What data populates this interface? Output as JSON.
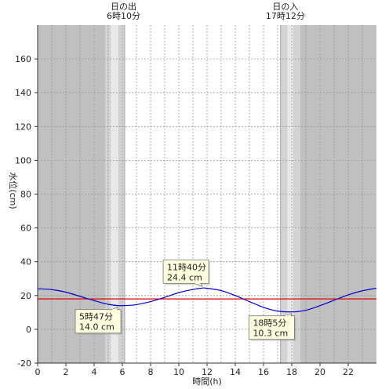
{
  "chart_data": {
    "type": "line",
    "xlabel": "時間(h)",
    "ylabel": "水位(cm)",
    "xlim": [
      0,
      24
    ],
    "ylim": [
      -20,
      180
    ],
    "xticks": [
      0,
      2,
      4,
      6,
      8,
      10,
      12,
      14,
      16,
      18,
      20,
      22
    ],
    "yticks": [
      -20,
      0,
      20,
      40,
      60,
      80,
      100,
      120,
      140,
      160
    ],
    "grid": true,
    "reference_line": {
      "value": 18,
      "color": "#e00000"
    },
    "series_color": "#0000cc",
    "series": [
      {
        "x": [
          0,
          1,
          2,
          3,
          4,
          5,
          5.78,
          6.5,
          7,
          8,
          9,
          10,
          11,
          11.67,
          12,
          13,
          14,
          15,
          16,
          17,
          18.08,
          19,
          20,
          21,
          22,
          23,
          24
        ],
        "values": [
          24,
          23.5,
          22,
          19.5,
          17,
          14.8,
          14.0,
          14.2,
          14.6,
          16.4,
          18.9,
          21.7,
          23.6,
          24.4,
          24.3,
          22.9,
          20.0,
          16.4,
          13.0,
          10.8,
          10.3,
          11.3,
          14.0,
          17.2,
          20.4,
          22.8,
          24.3
        ]
      }
    ],
    "annotations": [
      {
        "x": 11.67,
        "y": 24.4,
        "time": "11時40分",
        "value": "24.4 cm",
        "position": "above"
      },
      {
        "x": 5.78,
        "y": 14.0,
        "time": "5時47分",
        "value": "14.0 cm",
        "position": "below-left"
      },
      {
        "x": 18.08,
        "y": 10.3,
        "time": "18時5分",
        "value": "10.3 cm",
        "position": "below-left"
      }
    ],
    "sunrise": {
      "label": "日の出",
      "time": "6時10分",
      "hour": 6.1667
    },
    "sunset": {
      "label": "日の入",
      "time": "17時12分",
      "hour": 17.2
    },
    "shading": {
      "night_color": "#c0c0c0",
      "twilight_dark_color": "#d3d3d3",
      "twilight_light_color": "#e8e8e8",
      "day_color": "#ffffff",
      "bands": [
        {
          "from": 0,
          "to": 4.8,
          "color": "night"
        },
        {
          "from": 4.8,
          "to": 5.2,
          "color": "twilight_dark"
        },
        {
          "from": 5.2,
          "to": 5.7,
          "color": "twilight_light"
        },
        {
          "from": 5.7,
          "to": 6.1667,
          "color": "twilight_dark"
        },
        {
          "from": 17.2,
          "to": 17.7,
          "color": "twilight_dark"
        },
        {
          "from": 17.7,
          "to": 18.1,
          "color": "twilight_light"
        },
        {
          "from": 18.1,
          "to": 18.6,
          "color": "twilight_dark"
        },
        {
          "from": 18.6,
          "to": 24,
          "color": "night"
        }
      ]
    }
  }
}
